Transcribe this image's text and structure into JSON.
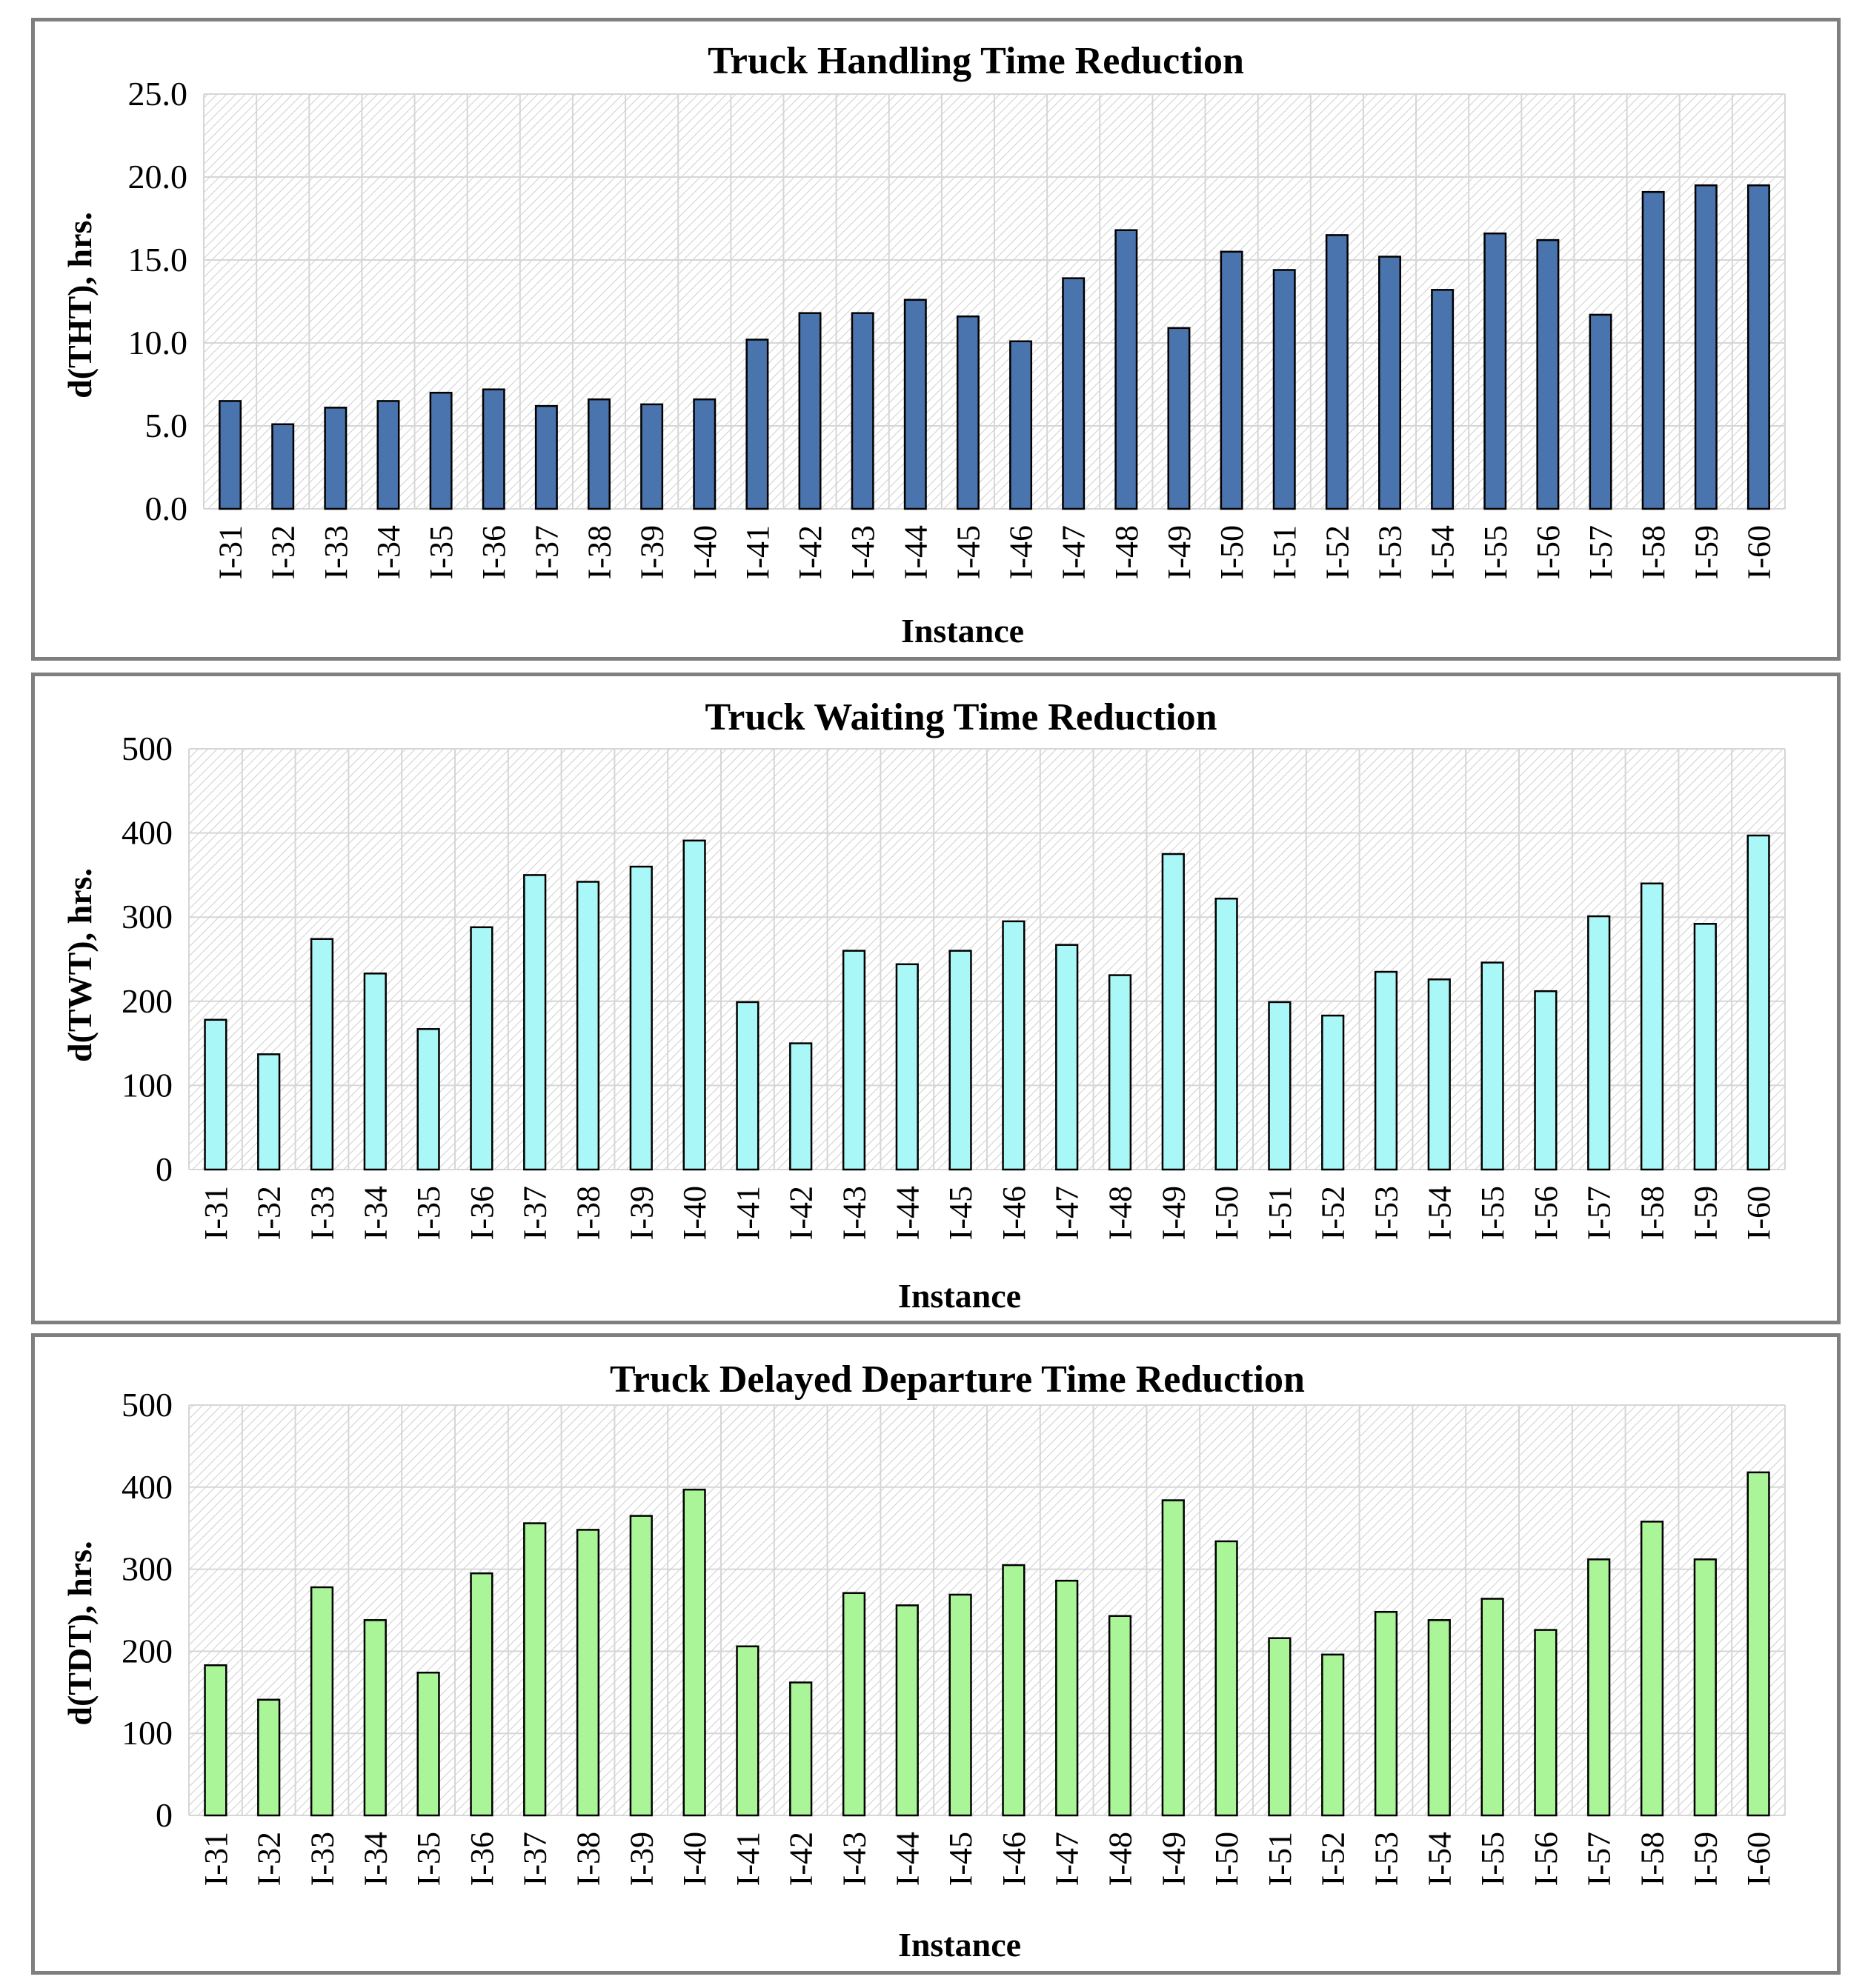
{
  "chart_data": [
    {
      "type": "bar",
      "title": "Truck Handling Time Reduction",
      "xlabel": "Instance",
      "ylabel": "d(THT), hrs.",
      "ylim": [
        0,
        25
      ],
      "yticks": [
        "0.0",
        "5.0",
        "10.0",
        "15.0",
        "20.0",
        "25.0"
      ],
      "ytick_values": [
        0,
        5,
        10,
        15,
        20,
        25
      ],
      "grid": true,
      "bar_color": "#4a74ad",
      "categories": [
        "I-31",
        "I-32",
        "I-33",
        "I-34",
        "I-35",
        "I-36",
        "I-37",
        "I-38",
        "I-39",
        "I-40",
        "I-41",
        "I-42",
        "I-43",
        "I-44",
        "I-45",
        "I-46",
        "I-47",
        "I-48",
        "I-49",
        "I-50",
        "I-51",
        "I-52",
        "I-53",
        "I-54",
        "I-55",
        "I-56",
        "I-57",
        "I-58",
        "I-59",
        "I-60"
      ],
      "values": [
        6.5,
        5.1,
        6.1,
        6.5,
        7.0,
        7.2,
        6.2,
        6.6,
        6.3,
        6.6,
        10.2,
        11.8,
        11.8,
        12.6,
        11.6,
        10.1,
        13.9,
        16.8,
        10.9,
        15.5,
        14.4,
        16.5,
        15.2,
        13.2,
        16.6,
        16.2,
        11.7,
        19.1,
        19.5,
        19.5
      ]
    },
    {
      "type": "bar",
      "title": "Truck Waiting Time Reduction",
      "xlabel": "Instance",
      "ylabel": "d(TWT), hrs.",
      "ylim": [
        0,
        500
      ],
      "yticks": [
        "0",
        "100",
        "200",
        "300",
        "400",
        "500"
      ],
      "ytick_values": [
        0,
        100,
        200,
        300,
        400,
        500
      ],
      "grid": true,
      "bar_color": "#aaf7f7",
      "categories": [
        "I-31",
        "I-32",
        "I-33",
        "I-34",
        "I-35",
        "I-36",
        "I-37",
        "I-38",
        "I-39",
        "I-40",
        "I-41",
        "I-42",
        "I-43",
        "I-44",
        "I-45",
        "I-46",
        "I-47",
        "I-48",
        "I-49",
        "I-50",
        "I-51",
        "I-52",
        "I-53",
        "I-54",
        "I-55",
        "I-56",
        "I-57",
        "I-58",
        "I-59",
        "I-60"
      ],
      "values": [
        178,
        137,
        274,
        233,
        167,
        288,
        350,
        342,
        360,
        391,
        199,
        150,
        260,
        244,
        260,
        295,
        267,
        231,
        375,
        322,
        199,
        183,
        235,
        226,
        246,
        212,
        301,
        340,
        292,
        397
      ]
    },
    {
      "type": "bar",
      "title": "Truck Delayed Departure Time Reduction",
      "xlabel": "Instance",
      "ylabel": "d(TDT), hrs.",
      "ylim": [
        0,
        500
      ],
      "yticks": [
        "0",
        "100",
        "200",
        "300",
        "400",
        "500"
      ],
      "ytick_values": [
        0,
        100,
        200,
        300,
        400,
        500
      ],
      "grid": true,
      "bar_color": "#a9f597",
      "categories": [
        "I-31",
        "I-32",
        "I-33",
        "I-34",
        "I-35",
        "I-36",
        "I-37",
        "I-38",
        "I-39",
        "I-40",
        "I-41",
        "I-42",
        "I-43",
        "I-44",
        "I-45",
        "I-46",
        "I-47",
        "I-48",
        "I-49",
        "I-50",
        "I-51",
        "I-52",
        "I-53",
        "I-54",
        "I-55",
        "I-56",
        "I-57",
        "I-58",
        "I-59",
        "I-60"
      ],
      "values": [
        183,
        141,
        278,
        238,
        174,
        295,
        356,
        348,
        365,
        397,
        206,
        162,
        271,
        256,
        269,
        305,
        286,
        243,
        384,
        334,
        216,
        196,
        248,
        238,
        264,
        226,
        312,
        358,
        312,
        418
      ]
    }
  ]
}
